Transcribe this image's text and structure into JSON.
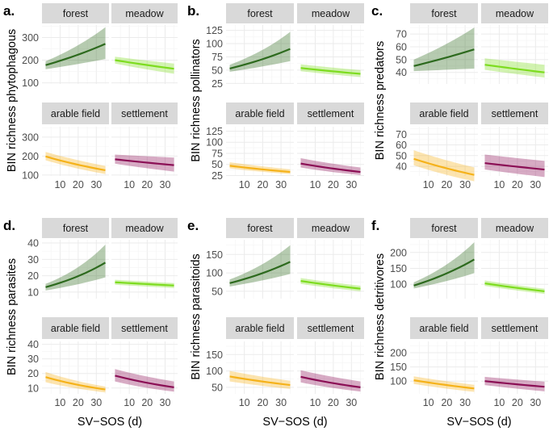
{
  "colors": {
    "forest": "#2d6a1e",
    "meadow": "#7ddc1f",
    "arable_field": "#f5b21a",
    "settlement": "#8b0f55",
    "strip_fill": "#d9d9d9",
    "grid": "#ebebeb",
    "axis_text": "#4d4d4d"
  },
  "chart_data": [
    {
      "type": "line",
      "panel_letter": "a.",
      "ylabel": "BIN richness phytophagous",
      "xlabel": "",
      "x_ticks": [
        10,
        20,
        30
      ],
      "xlim": [
        0,
        37
      ],
      "ylim": [
        95,
        355
      ],
      "y_ticks": [
        100,
        200,
        300
      ],
      "facets": [
        {
          "label": "forest",
          "habitat": "forest",
          "x": [
            2,
            35
          ],
          "y": [
            178,
            272
          ],
          "lower": [
            160,
            205
          ],
          "upper": [
            195,
            345
          ]
        },
        {
          "label": "meadow",
          "habitat": "meadow",
          "x": [
            2,
            35
          ],
          "y": [
            200,
            162
          ],
          "lower": [
            185,
            140
          ],
          "upper": [
            215,
            185
          ]
        },
        {
          "label": "arable field",
          "habitat": "arable_field",
          "x": [
            2,
            35
          ],
          "y": [
            198,
            125
          ],
          "lower": [
            178,
            105
          ],
          "upper": [
            222,
            148
          ]
        },
        {
          "label": "settlement",
          "habitat": "settlement",
          "x": [
            2,
            35
          ],
          "y": [
            183,
            152
          ],
          "lower": [
            160,
            118
          ],
          "upper": [
            208,
            192
          ]
        }
      ]
    },
    {
      "type": "line",
      "panel_letter": "b.",
      "ylabel": "BIN richness pollinators",
      "xlabel": "",
      "x_ticks": [
        10,
        20,
        30
      ],
      "xlim": [
        0,
        37
      ],
      "ylim": [
        24,
        135
      ],
      "y_ticks": [
        25,
        50,
        75,
        100,
        125
      ],
      "facets": [
        {
          "label": "forest",
          "habitat": "forest",
          "x": [
            2,
            35
          ],
          "y": [
            53,
            90
          ],
          "lower": [
            47,
            67
          ],
          "upper": [
            60,
            122
          ]
        },
        {
          "label": "meadow",
          "habitat": "meadow",
          "x": [
            2,
            35
          ],
          "y": [
            54,
            43
          ],
          "lower": [
            48,
            37
          ],
          "upper": [
            61,
            50
          ]
        },
        {
          "label": "arable field",
          "habitat": "arable_field",
          "x": [
            2,
            35
          ],
          "y": [
            47,
            33
          ],
          "lower": [
            41,
            28
          ],
          "upper": [
            55,
            39
          ]
        },
        {
          "label": "settlement",
          "habitat": "settlement",
          "x": [
            2,
            35
          ],
          "y": [
            52,
            33
          ],
          "lower": [
            43,
            26
          ],
          "upper": [
            64,
            43
          ]
        }
      ]
    },
    {
      "type": "line",
      "panel_letter": "c.",
      "ylabel": "BIN richness predators",
      "xlabel": "",
      "x_ticks": [
        10,
        20,
        30
      ],
      "xlim": [
        0,
        37
      ],
      "ylim": [
        31,
        77
      ],
      "y_ticks": [
        30,
        40,
        50,
        60,
        70
      ],
      "facets": [
        {
          "label": "forest",
          "habitat": "forest",
          "x": [
            2,
            35
          ],
          "y": [
            45,
            58
          ],
          "lower": [
            41,
            43
          ],
          "upper": [
            50,
            75
          ]
        },
        {
          "label": "meadow",
          "habitat": "meadow",
          "x": [
            2,
            35
          ],
          "y": [
            46,
            40
          ],
          "lower": [
            42,
            36
          ],
          "upper": [
            51,
            46
          ]
        },
        {
          "label": "arable field",
          "habitat": "arable_field",
          "x": [
            2,
            35
          ],
          "y": [
            47,
            32
          ],
          "lower": [
            41,
            26
          ],
          "upper": [
            55,
            39
          ]
        },
        {
          "label": "settlement",
          "habitat": "settlement",
          "x": [
            2,
            35
          ],
          "y": [
            43,
            37
          ],
          "lower": [
            37,
            30
          ],
          "upper": [
            51,
            45
          ]
        }
      ]
    },
    {
      "type": "line",
      "panel_letter": "d.",
      "ylabel": "BIN richness parasites",
      "xlabel": "SV−SOS (d)",
      "x_ticks": [
        10,
        20,
        30
      ],
      "xlim": [
        0,
        37
      ],
      "ylim": [
        6,
        42
      ],
      "y_ticks": [
        10,
        20,
        30,
        40
      ],
      "facets": [
        {
          "label": "forest",
          "habitat": "forest",
          "x": [
            2,
            35
          ],
          "y": [
            13,
            28
          ],
          "lower": [
            11,
            19
          ],
          "upper": [
            15,
            39
          ]
        },
        {
          "label": "meadow",
          "habitat": "meadow",
          "x": [
            2,
            35
          ],
          "y": [
            16,
            14
          ],
          "lower": [
            14.5,
            12.5
          ],
          "upper": [
            17.5,
            15.5
          ]
        },
        {
          "label": "arable field",
          "habitat": "arable_field",
          "x": [
            2,
            35
          ],
          "y": [
            17.5,
            9
          ],
          "lower": [
            14,
            7
          ],
          "upper": [
            21,
            11
          ]
        },
        {
          "label": "settlement",
          "habitat": "settlement",
          "x": [
            2,
            35
          ],
          "y": [
            18.5,
            10.5
          ],
          "lower": [
            14.5,
            7.5
          ],
          "upper": [
            23,
            14.5
          ]
        }
      ]
    },
    {
      "type": "line",
      "panel_letter": "e.",
      "ylabel": "BIN richness parasitoids",
      "xlabel": "SV−SOS (d)",
      "x_ticks": [
        10,
        20,
        30
      ],
      "xlim": [
        0,
        37
      ],
      "ylim": [
        30,
        190
      ],
      "y_ticks": [
        50,
        100,
        150
      ],
      "facets": [
        {
          "label": "forest",
          "habitat": "forest",
          "x": [
            2,
            35
          ],
          "y": [
            72,
            130
          ],
          "lower": [
            63,
            97
          ],
          "upper": [
            82,
            175
          ]
        },
        {
          "label": "meadow",
          "habitat": "meadow",
          "x": [
            2,
            35
          ],
          "y": [
            78,
            57
          ],
          "lower": [
            70,
            50
          ],
          "upper": [
            86,
            65
          ]
        },
        {
          "label": "arable field",
          "habitat": "arable_field",
          "x": [
            2,
            35
          ],
          "y": [
            83,
            57
          ],
          "lower": [
            68,
            45
          ],
          "upper": [
            100,
            70
          ]
        },
        {
          "label": "settlement",
          "habitat": "settlement",
          "x": [
            2,
            35
          ],
          "y": [
            82,
            50
          ],
          "lower": [
            65,
            37
          ],
          "upper": [
            102,
            68
          ]
        }
      ]
    },
    {
      "type": "line",
      "panel_letter": "f.",
      "ylabel": "BIN richness detritivores",
      "xlabel": "SV−SOS (d)",
      "x_ticks": [
        10,
        20,
        30
      ],
      "xlim": [
        0,
        37
      ],
      "ylim": [
        55,
        240
      ],
      "y_ticks": [
        100,
        150,
        200
      ],
      "facets": [
        {
          "label": "forest",
          "habitat": "forest",
          "x": [
            2,
            35
          ],
          "y": [
            96,
            178
          ],
          "lower": [
            87,
            135
          ],
          "upper": [
            106,
            232
          ]
        },
        {
          "label": "meadow",
          "habitat": "meadow",
          "x": [
            2,
            35
          ],
          "y": [
            103,
            78
          ],
          "lower": [
            95,
            70
          ],
          "upper": [
            112,
            86
          ]
        },
        {
          "label": "arable field",
          "habitat": "arable_field",
          "x": [
            2,
            35
          ],
          "y": [
            103,
            74
          ],
          "lower": [
            90,
            62
          ],
          "upper": [
            117,
            87
          ]
        },
        {
          "label": "settlement",
          "habitat": "settlement",
          "x": [
            2,
            35
          ],
          "y": [
            100,
            80
          ],
          "lower": [
            86,
            64
          ],
          "upper": [
            115,
            98
          ]
        }
      ]
    }
  ]
}
